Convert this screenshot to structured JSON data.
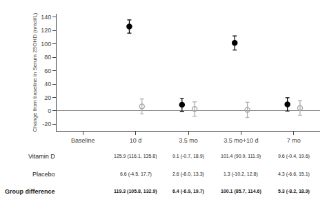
{
  "chart_data": {
    "type": "scatter",
    "categories": [
      "Baseline",
      "10 d",
      "3.5 mo",
      "3.5 mo+10 d",
      "7 mo"
    ],
    "ylabel": "Change from baseline in Serum 25OHD (nmol/L)",
    "ylim": [
      -30,
      145
    ],
    "yticks": [
      -20,
      0,
      20,
      40,
      60,
      80,
      100,
      120,
      140
    ],
    "grid": false,
    "series": [
      {
        "color": "#000000",
        "marker": "circle",
        "values": [
          null,
          125.9,
          9.1,
          101.4,
          9.6
        ],
        "lo": [
          null,
          116.1,
          -0.7,
          90.9,
          -0.4
        ],
        "hi": [
          null,
          135.8,
          18.9,
          111.9,
          19.6
        ]
      },
      {
        "color": "#aaaaaa",
        "marker": "circle-open",
        "values": [
          null,
          6.6,
          2.6,
          1.3,
          4.3
        ],
        "lo": [
          null,
          -4.5,
          -8.0,
          -10.2,
          -6.6
        ],
        "hi": [
          null,
          17.7,
          13.3,
          12.8,
          15.1
        ]
      }
    ],
    "table": {
      "row_labels": [
        "Vitamin D",
        "Placebo",
        "Group difference"
      ],
      "cells": [
        [
          null,
          "125.9 (116.1, 135.8)",
          "9.1 (-0.7, 18.9)",
          "101.4 (90.9, 111.9)",
          "9.6 (-0.4, 19.6)"
        ],
        [
          null,
          "6.6 (-4.5, 17.7)",
          "2.6 (-8.0, 13.3)",
          "1.3 (-10.2, 12.8)",
          "4.3 (-6.6, 15.1)"
        ],
        [
          null,
          "119.3 (105.8, 132.9)",
          "6.4 (-6.9, 19.7)",
          "100.1 (85.7, 114.6)",
          "5.3 (-8.2, 18.9)"
        ]
      ]
    }
  }
}
